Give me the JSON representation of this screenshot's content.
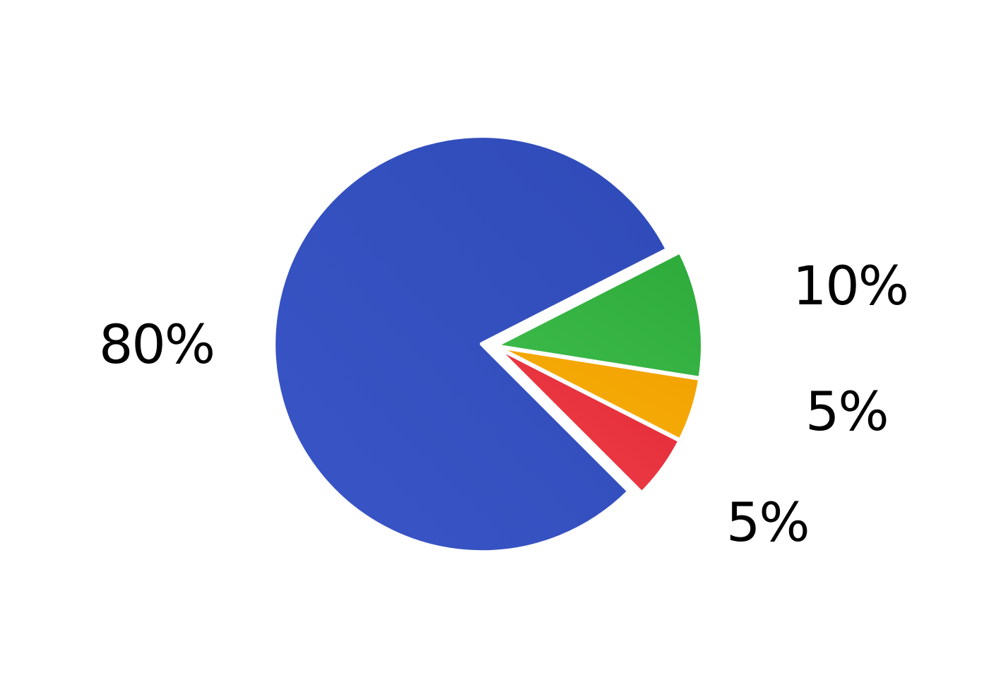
{
  "chart_data": {
    "type": "pie",
    "title": "",
    "slices": [
      {
        "label": "80%",
        "value": 80,
        "color": "#3A55C6",
        "color_dark": "#2F4BB8"
      },
      {
        "label": "10%",
        "value": 10,
        "color": "#3DBB4A",
        "color_dark": "#2DAA3A"
      },
      {
        "label": "5%",
        "value": 5,
        "color": "#F9B10A",
        "color_dark": "#F0A000"
      },
      {
        "label": "5%",
        "value": 5,
        "color": "#F2404B",
        "color_dark": "#E02A35"
      }
    ],
    "exploded_slice": 0,
    "separator_color": "#FFFFFF"
  }
}
